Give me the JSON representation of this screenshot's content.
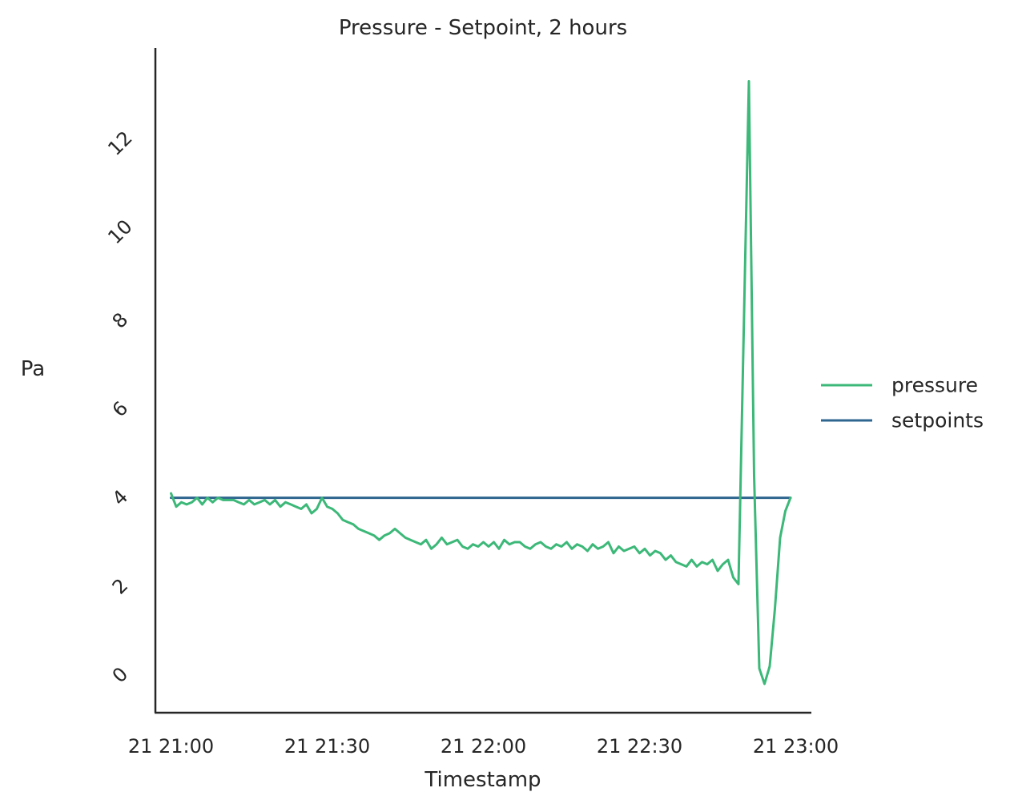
{
  "chart_data": {
    "type": "line",
    "title": "Pressure - Setpoint, 2 hours",
    "xlabel": "Timestamp",
    "ylabel": "Pa",
    "x_type": "time",
    "xlim": [
      "21 20:57",
      "21 23:03"
    ],
    "ylim": [
      -0.85,
      14.15
    ],
    "x_ticks": [
      {
        "value": "21 21:00",
        "label": "21 21:00"
      },
      {
        "value": "21 21:30",
        "label": "21 21:30"
      },
      {
        "value": "21 22:00",
        "label": "21 22:00"
      },
      {
        "value": "21 22:30",
        "label": "21 22:30"
      },
      {
        "value": "21 23:00",
        "label": "21 23:00"
      }
    ],
    "y_ticks": [
      0,
      2,
      4,
      6,
      8,
      10,
      12
    ],
    "y_tick_rotation": -45,
    "grid": false,
    "legend": {
      "placement": "right"
    },
    "series": [
      {
        "name": "pressure",
        "color": "#3cb878",
        "points": [
          [
            "21 21:00",
            4.1
          ],
          [
            "21 21:01",
            3.8
          ],
          [
            "21 21:02",
            3.9
          ],
          [
            "21 21:03",
            3.85
          ],
          [
            "21 21:04",
            3.9
          ],
          [
            "21 21:05",
            4.0
          ],
          [
            "21 21:06",
            3.85
          ],
          [
            "21 21:07",
            4.0
          ],
          [
            "21 21:08",
            3.9
          ],
          [
            "21 21:09",
            4.0
          ],
          [
            "21 21:10",
            3.95
          ],
          [
            "21 21:11",
            3.95
          ],
          [
            "21 21:12",
            3.95
          ],
          [
            "21 21:13",
            3.9
          ],
          [
            "21 21:14",
            3.85
          ],
          [
            "21 21:15",
            3.95
          ],
          [
            "21 21:16",
            3.85
          ],
          [
            "21 21:17",
            3.9
          ],
          [
            "21 21:18",
            3.95
          ],
          [
            "21 21:19",
            3.85
          ],
          [
            "21 21:20",
            3.95
          ],
          [
            "21 21:21",
            3.8
          ],
          [
            "21 21:22",
            3.9
          ],
          [
            "21 21:23",
            3.85
          ],
          [
            "21 21:24",
            3.8
          ],
          [
            "21 21:25",
            3.75
          ],
          [
            "21 21:26",
            3.85
          ],
          [
            "21 21:27",
            3.65
          ],
          [
            "21 21:28",
            3.75
          ],
          [
            "21 21:29",
            4.0
          ],
          [
            "21 21:30",
            3.8
          ],
          [
            "21 21:31",
            3.75
          ],
          [
            "21 21:32",
            3.65
          ],
          [
            "21 21:33",
            3.5
          ],
          [
            "21 21:34",
            3.45
          ],
          [
            "21 21:35",
            3.4
          ],
          [
            "21 21:36",
            3.3
          ],
          [
            "21 21:37",
            3.25
          ],
          [
            "21 21:38",
            3.2
          ],
          [
            "21 21:39",
            3.15
          ],
          [
            "21 21:40",
            3.05
          ],
          [
            "21 21:41",
            3.15
          ],
          [
            "21 21:42",
            3.2
          ],
          [
            "21 21:43",
            3.3
          ],
          [
            "21 21:44",
            3.2
          ],
          [
            "21 21:45",
            3.1
          ],
          [
            "21 21:46",
            3.05
          ],
          [
            "21 21:47",
            3.0
          ],
          [
            "21 21:48",
            2.95
          ],
          [
            "21 21:49",
            3.05
          ],
          [
            "21 21:50",
            2.85
          ],
          [
            "21 21:51",
            2.95
          ],
          [
            "21 21:52",
            3.1
          ],
          [
            "21 21:53",
            2.95
          ],
          [
            "21 21:54",
            3.0
          ],
          [
            "21 21:55",
            3.05
          ],
          [
            "21 21:56",
            2.9
          ],
          [
            "21 21:57",
            2.85
          ],
          [
            "21 21:58",
            2.95
          ],
          [
            "21 21:59",
            2.9
          ],
          [
            "21 22:00",
            3.0
          ],
          [
            "21 22:01",
            2.9
          ],
          [
            "21 22:02",
            3.0
          ],
          [
            "21 22:03",
            2.85
          ],
          [
            "21 22:04",
            3.05
          ],
          [
            "21 22:05",
            2.95
          ],
          [
            "21 22:06",
            3.0
          ],
          [
            "21 22:07",
            3.0
          ],
          [
            "21 22:08",
            2.9
          ],
          [
            "21 22:09",
            2.85
          ],
          [
            "21 22:10",
            2.95
          ],
          [
            "21 22:11",
            3.0
          ],
          [
            "21 22:12",
            2.9
          ],
          [
            "21 22:13",
            2.85
          ],
          [
            "21 22:14",
            2.95
          ],
          [
            "21 22:15",
            2.9
          ],
          [
            "21 22:16",
            3.0
          ],
          [
            "21 22:17",
            2.85
          ],
          [
            "21 22:18",
            2.95
          ],
          [
            "21 22:19",
            2.9
          ],
          [
            "21 22:20",
            2.8
          ],
          [
            "21 22:21",
            2.95
          ],
          [
            "21 22:22",
            2.85
          ],
          [
            "21 22:23",
            2.9
          ],
          [
            "21 22:24",
            3.0
          ],
          [
            "21 22:25",
            2.75
          ],
          [
            "21 22:26",
            2.9
          ],
          [
            "21 22:27",
            2.8
          ],
          [
            "21 22:28",
            2.85
          ],
          [
            "21 22:29",
            2.9
          ],
          [
            "21 22:30",
            2.75
          ],
          [
            "21 22:31",
            2.85
          ],
          [
            "21 22:32",
            2.7
          ],
          [
            "21 22:33",
            2.8
          ],
          [
            "21 22:34",
            2.75
          ],
          [
            "21 22:35",
            2.6
          ],
          [
            "21 22:36",
            2.7
          ],
          [
            "21 22:37",
            2.55
          ],
          [
            "21 22:38",
            2.5
          ],
          [
            "21 22:39",
            2.45
          ],
          [
            "21 22:40",
            2.6
          ],
          [
            "21 22:41",
            2.45
          ],
          [
            "21 22:42",
            2.55
          ],
          [
            "21 22:43",
            2.5
          ],
          [
            "21 22:44",
            2.6
          ],
          [
            "21 22:45",
            2.35
          ],
          [
            "21 22:46",
            2.5
          ],
          [
            "21 22:47",
            2.6
          ],
          [
            "21 22:48",
            2.2
          ],
          [
            "21 22:49",
            2.05
          ],
          [
            "21 22:51",
            13.4
          ],
          [
            "21 22:52",
            4.5
          ],
          [
            "21 22:53",
            0.15
          ],
          [
            "21 22:54",
            -0.2
          ],
          [
            "21 22:55",
            0.2
          ],
          [
            "21 22:56",
            1.5
          ],
          [
            "21 22:57",
            3.1
          ],
          [
            "21 22:58",
            3.7
          ],
          [
            "21 22:59",
            4.0
          ]
        ]
      },
      {
        "name": "setpoints",
        "color": "#2f6690",
        "points": [
          [
            "21 21:00",
            4.0
          ],
          [
            "21 22:59",
            4.0
          ]
        ]
      }
    ]
  }
}
